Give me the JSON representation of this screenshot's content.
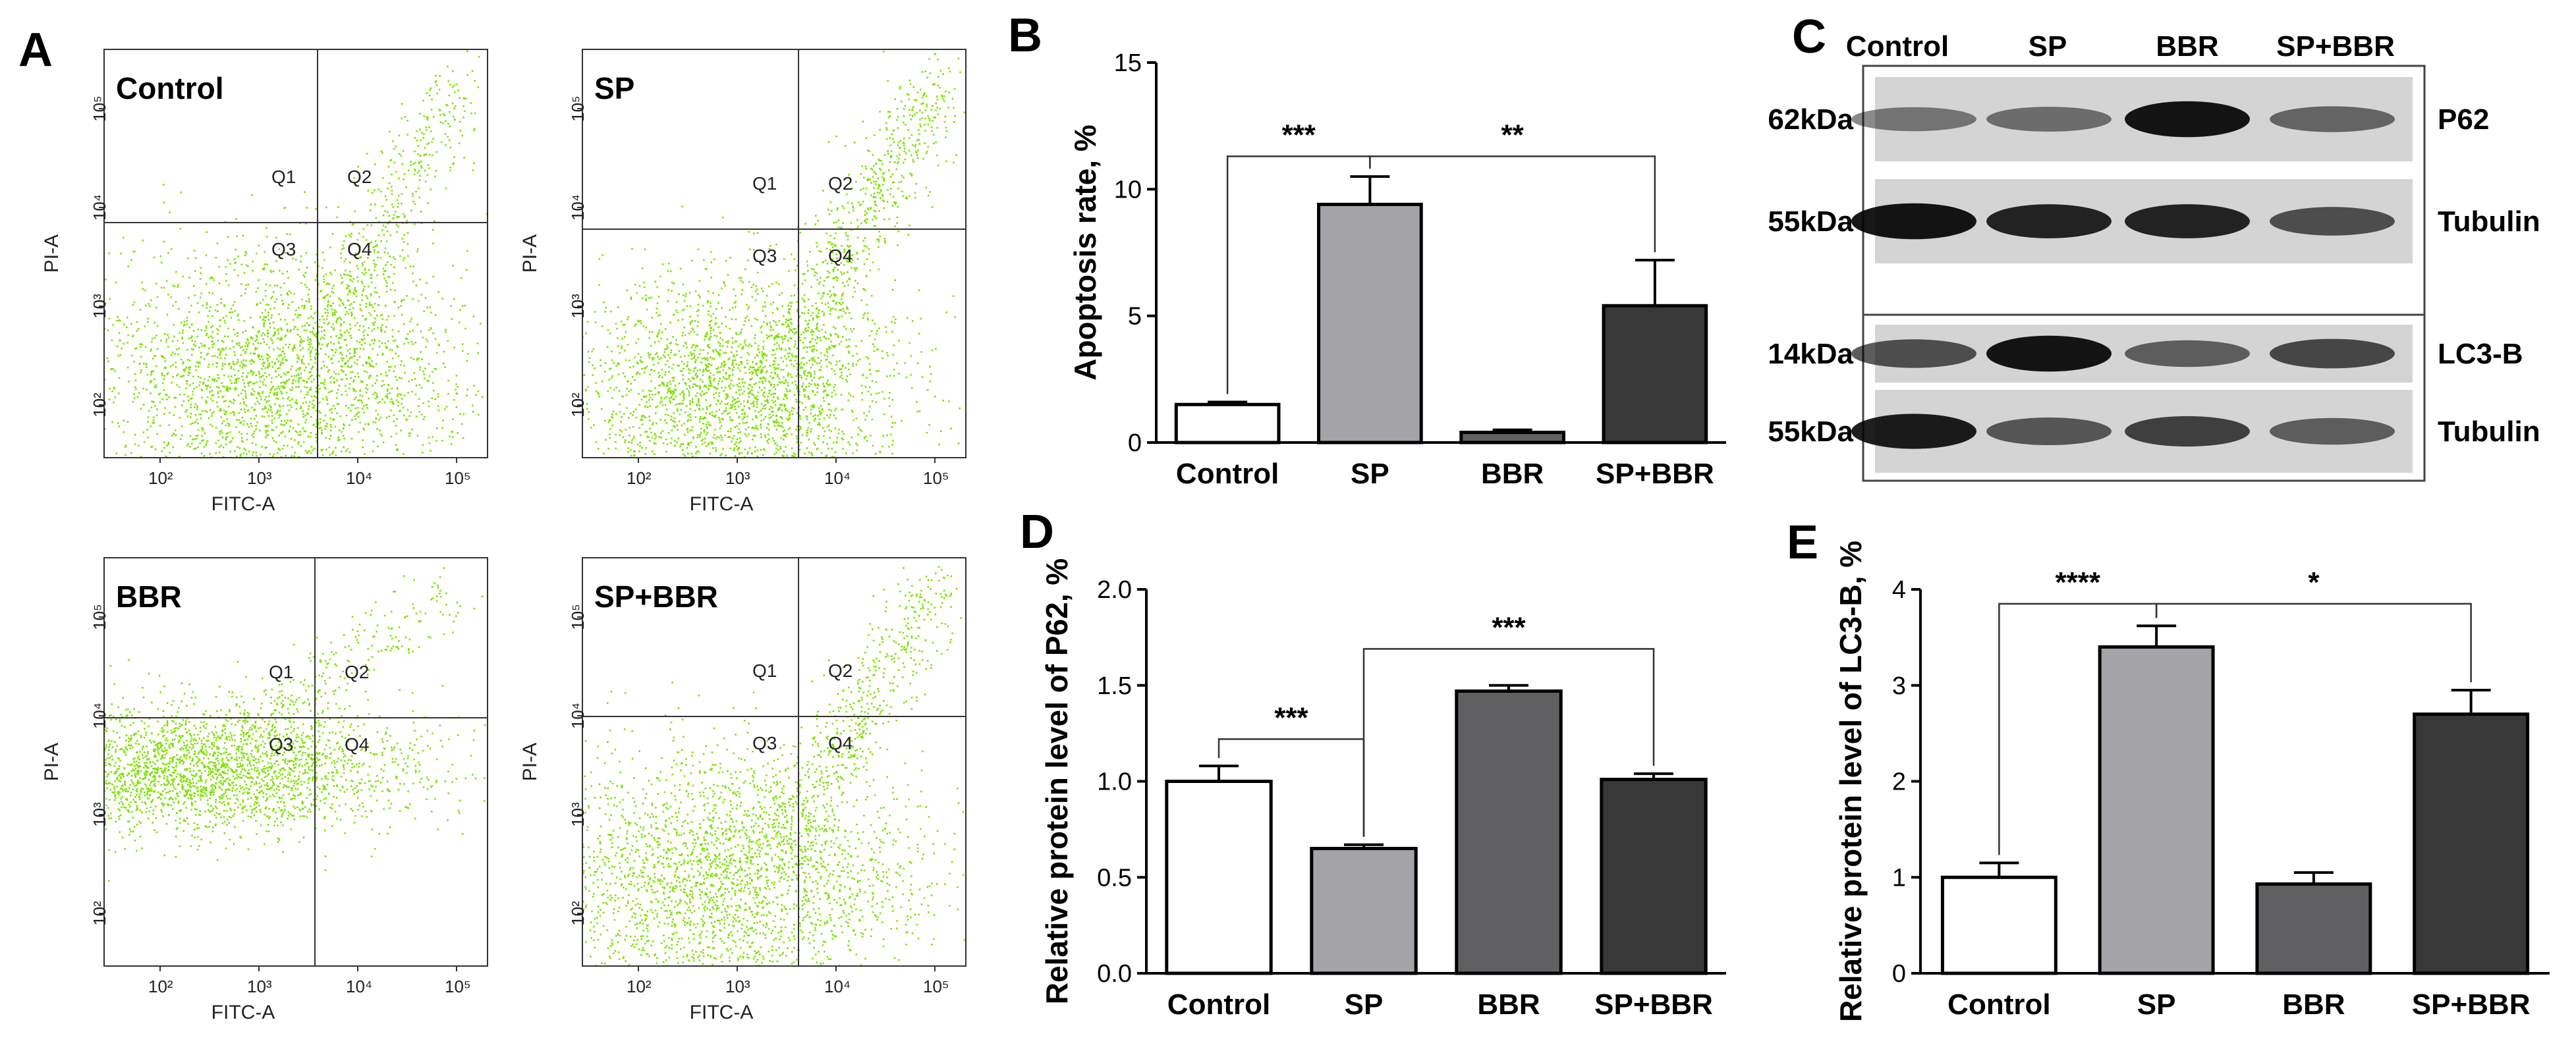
{
  "panels": {
    "A": "A",
    "B": "B",
    "C": "C",
    "D": "D",
    "E": "E"
  },
  "flow_cytometry": {
    "x_axis": "FITC-A",
    "y_axis": "PI-A",
    "x_ticks": [
      "10²",
      "10³",
      "10⁴",
      "10⁵"
    ],
    "y_ticks": [
      "10²",
      "10³",
      "10⁴",
      "10⁵"
    ],
    "quadrants": [
      "Q1",
      "Q2",
      "Q3",
      "Q4"
    ],
    "dot_color": "#7fe000",
    "plots": [
      {
        "label": "Control"
      },
      {
        "label": "SP"
      },
      {
        "label": "BBR"
      },
      {
        "label": "SP+BBR"
      }
    ]
  },
  "western_blot": {
    "lanes": [
      "Control",
      "SP",
      "BBR",
      "SP+BBR"
    ],
    "rows": [
      {
        "size": "62kDa",
        "protein": "P62",
        "intensity": [
          0.3,
          0.35,
          0.95,
          0.4
        ]
      },
      {
        "size": "55kDa",
        "protein": "Tubulin",
        "intensity": [
          0.95,
          0.85,
          0.85,
          0.55
        ]
      },
      {
        "size": "14kDa",
        "protein": "LC3-B",
        "intensity": [
          0.55,
          0.95,
          0.45,
          0.6
        ]
      },
      {
        "size": "55kDa",
        "protein": "Tubulin",
        "intensity": [
          0.9,
          0.5,
          0.65,
          0.45
        ]
      }
    ]
  },
  "chart_data": [
    {
      "panel": "B",
      "type": "bar",
      "categories": [
        "Control",
        "SP",
        "BBR",
        "SP+BBR"
      ],
      "values": [
        1.5,
        9.4,
        0.4,
        5.4
      ],
      "errors": [
        0.1,
        1.1,
        0.1,
        1.8
      ],
      "colors": [
        "#ffffff",
        "#a3a3a8",
        "#606062",
        "#383838"
      ],
      "title": "",
      "xlabel": "",
      "ylabel": "Apoptosis rate, %",
      "ylim": [
        0,
        15
      ],
      "yticks": [
        "0",
        "5",
        "10",
        "15"
      ],
      "ytick_values": [
        0,
        5,
        10,
        15
      ],
      "significance": [
        {
          "from": 0,
          "to": 1,
          "label": "***",
          "level": 11.3
        },
        {
          "from": 1,
          "to": 3,
          "label": "**",
          "level": 11.3
        }
      ]
    },
    {
      "panel": "D",
      "type": "bar",
      "categories": [
        "Control",
        "SP",
        "BBR",
        "SP+BBR"
      ],
      "values": [
        1.0,
        0.65,
        1.47,
        1.01
      ],
      "errors": [
        0.08,
        0.02,
        0.03,
        0.03
      ],
      "colors": [
        "#ffffff",
        "#a3a3a8",
        "#606062",
        "#383838"
      ],
      "title": "",
      "xlabel": "",
      "ylabel": "Relative protein level of P62, %",
      "ylim": [
        0,
        2.0
      ],
      "yticks": [
        "0.0",
        "0.5",
        "1.0",
        "1.5",
        "2.0"
      ],
      "ytick_values": [
        0,
        0.5,
        1.0,
        1.5,
        2.0
      ],
      "significance": [
        {
          "from": 0,
          "to": 1,
          "label": "***",
          "level": 1.22
        },
        {
          "from": 1,
          "to": 3,
          "label": "***",
          "level": 1.69
        }
      ]
    },
    {
      "panel": "E",
      "type": "bar",
      "categories": [
        "Control",
        "SP",
        "BBR",
        "SP+BBR"
      ],
      "values": [
        1.0,
        3.4,
        0.93,
        2.7
      ],
      "errors": [
        0.15,
        0.22,
        0.12,
        0.25
      ],
      "colors": [
        "#ffffff",
        "#a3a3a8",
        "#606062",
        "#383838"
      ],
      "title": "",
      "xlabel": "",
      "ylabel": "Relative protein level of LC3-B, %",
      "ylim": [
        0,
        4
      ],
      "yticks": [
        "0",
        "1",
        "2",
        "3",
        "4"
      ],
      "ytick_values": [
        0,
        1,
        2,
        3,
        4
      ],
      "significance": [
        {
          "from": 0,
          "to": 1,
          "label": "****",
          "level": 3.85
        },
        {
          "from": 1,
          "to": 3,
          "label": "*",
          "level": 3.85
        }
      ]
    }
  ]
}
